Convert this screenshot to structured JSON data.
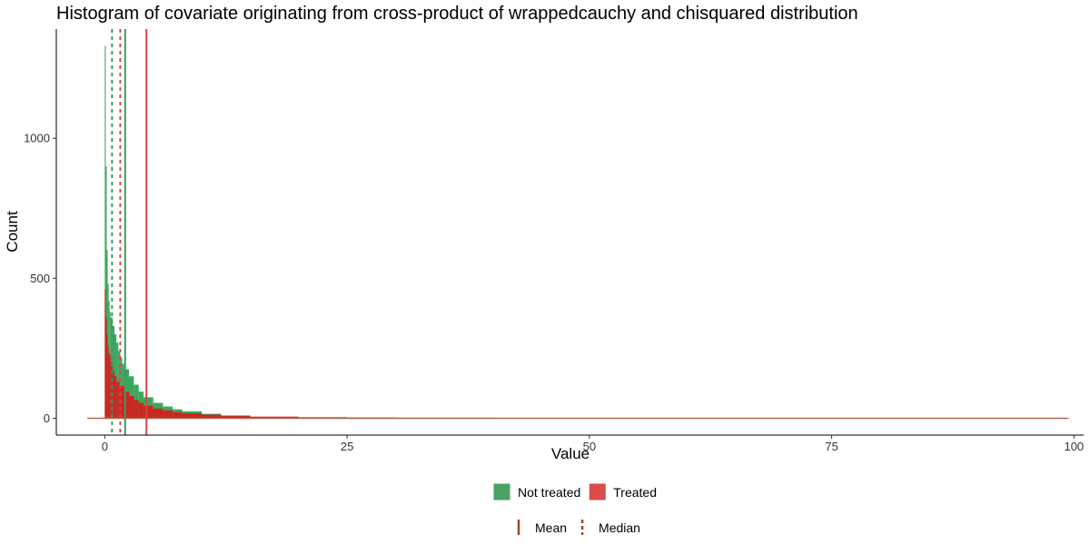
{
  "chart_data": {
    "type": "bar",
    "title": "Histogram of covariate originating from cross-product of wrappedcauchy and chisquared distribution",
    "xlabel": "Value",
    "ylabel": "Count",
    "xlim": [
      -5,
      101
    ],
    "ylim": [
      -60,
      1390
    ],
    "x_ticks": [
      0,
      25,
      50,
      75,
      100
    ],
    "y_ticks": [
      0,
      500,
      1000
    ],
    "grid": false,
    "legend_position": "bottom",
    "series": [
      {
        "name": "Not treated",
        "color": "#1a9641",
        "bins": [
          [
            0.0,
            1330
          ],
          [
            0.1,
            900
          ],
          [
            0.2,
            600
          ],
          [
            0.3,
            480
          ],
          [
            0.4,
            420
          ],
          [
            0.5,
            380
          ],
          [
            0.6,
            360
          ],
          [
            0.8,
            330
          ],
          [
            1.0,
            300
          ],
          [
            1.2,
            270
          ],
          [
            1.4,
            240
          ],
          [
            1.6,
            215
          ],
          [
            1.8,
            195
          ],
          [
            2.0,
            175
          ],
          [
            2.5,
            150
          ],
          [
            3.0,
            120
          ],
          [
            3.5,
            95
          ],
          [
            4.0,
            75
          ],
          [
            5.0,
            55
          ],
          [
            6.0,
            42
          ],
          [
            7.0,
            32
          ],
          [
            8.0,
            25
          ],
          [
            10.0,
            16
          ],
          [
            12.0,
            10
          ],
          [
            15.0,
            5
          ],
          [
            20.0,
            2
          ],
          [
            30.0,
            1
          ],
          [
            50.0,
            0.5
          ],
          [
            99.5,
            0
          ]
        ]
      },
      {
        "name": "Treated",
        "color": "#d7191c",
        "bins": [
          [
            0.0,
            460
          ],
          [
            0.1,
            360
          ],
          [
            0.2,
            300
          ],
          [
            0.3,
            260
          ],
          [
            0.4,
            230
          ],
          [
            0.6,
            200
          ],
          [
            0.8,
            170
          ],
          [
            1.0,
            150
          ],
          [
            1.2,
            130
          ],
          [
            1.5,
            115
          ],
          [
            2.0,
            95
          ],
          [
            2.5,
            80
          ],
          [
            3.0,
            65
          ],
          [
            3.5,
            55
          ],
          [
            4.0,
            45
          ],
          [
            5.0,
            35
          ],
          [
            6.0,
            28
          ],
          [
            7.0,
            22
          ],
          [
            8.0,
            18
          ],
          [
            10.0,
            13
          ],
          [
            12.0,
            9
          ],
          [
            15.0,
            6
          ],
          [
            20.0,
            4
          ],
          [
            25.0,
            3
          ],
          [
            30.0,
            2
          ],
          [
            40.0,
            1.5
          ],
          [
            50.0,
            1
          ],
          [
            70.0,
            0.5
          ],
          [
            99.5,
            0
          ]
        ]
      }
    ],
    "reference_lines": [
      {
        "group": "Not treated",
        "stat": "Mean",
        "x": 2.1,
        "color": "#3a9a5e",
        "style": "solid"
      },
      {
        "group": "Not treated",
        "stat": "Median",
        "x": 0.75,
        "color": "#3a9a5e",
        "style": "dashed"
      },
      {
        "group": "Treated",
        "stat": "Mean",
        "x": 4.3,
        "color": "#d94545",
        "style": "solid"
      },
      {
        "group": "Treated",
        "stat": "Median",
        "x": 1.6,
        "color": "#d94545",
        "style": "dashed"
      }
    ],
    "baseline": {
      "x_from": -1.8,
      "x_to": 99.3,
      "color": "#b5654a"
    },
    "legend_fill": [
      {
        "label": "Not treated",
        "color": "#4aa264"
      },
      {
        "label": "Treated",
        "color": "#dc4a4a"
      }
    ],
    "legend_lines": [
      {
        "label": "Mean",
        "style": "solid",
        "color": "#a0442f"
      },
      {
        "label": "Median",
        "style": "dashed",
        "color": "#a0442f"
      }
    ]
  }
}
